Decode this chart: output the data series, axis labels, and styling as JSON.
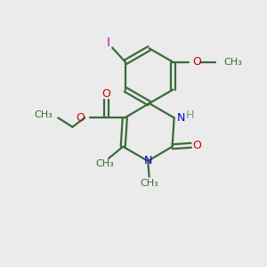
{
  "bg_color": "#ebebeb",
  "bond_color": "#3a6b3a",
  "nitrogen_color": "#0000cc",
  "oxygen_color": "#cc0000",
  "iodine_color": "#cc00cc",
  "h_color": "#7a9a7a",
  "figsize": [
    3.0,
    3.0
  ],
  "dpi": 100,
  "xlim": [
    0,
    10
  ],
  "ylim": [
    0,
    10
  ]
}
